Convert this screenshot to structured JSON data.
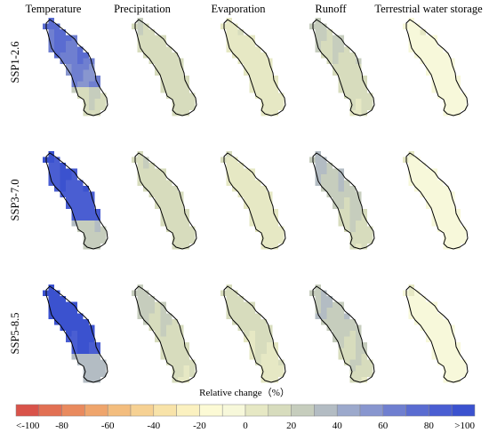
{
  "chart_data": {
    "type": "heatmap",
    "columns": [
      "Temperature",
      "Precipitation",
      "Evaporation",
      "Runoff",
      "Terrestrial water storage"
    ],
    "rows": [
      "SSP1-2.6",
      "SSP3-7.0",
      "SSP5-8.5"
    ],
    "colorbar": {
      "title": "Relative change（%）",
      "min": -100,
      "max": 100,
      "step": 10,
      "tick_labels": [
        "<-100",
        "-80",
        "-60",
        "-40",
        "-20",
        "0",
        "20",
        "40",
        "60",
        "80",
        ">100"
      ],
      "colors": [
        "#d9534a",
        "#e27053",
        "#e98a5e",
        "#efa56c",
        "#f3bd7e",
        "#f6d193",
        "#f8e3a9",
        "#fbf1c0",
        "#fcfad5",
        "#f7f8da",
        "#e6e8c4",
        "#d7dcbd",
        "#c6cdbd",
        "#b3bcc3",
        "#9ca9cc",
        "#8896cf",
        "#6f7fd0",
        "#5a6cd1",
        "#4a5ed2",
        "#3b52cf"
      ]
    },
    "panels": [
      {
        "row": "SSP1-2.6",
        "column": "Temperature",
        "typical_change": 60,
        "max_change": 100
      },
      {
        "row": "SSP1-2.6",
        "column": "Precipitation",
        "typical_change": 15,
        "max_change": 25
      },
      {
        "row": "SSP1-2.6",
        "column": "Evaporation",
        "typical_change": 5,
        "max_change": 15
      },
      {
        "row": "SSP1-2.6",
        "column": "Runoff",
        "typical_change": 15,
        "max_change": 35
      },
      {
        "row": "SSP1-2.6",
        "column": "Terrestrial water storage",
        "typical_change": -5,
        "max_change": 5
      },
      {
        "row": "SSP3-7.0",
        "column": "Temperature",
        "typical_change": 85,
        "max_change": 100
      },
      {
        "row": "SSP3-7.0",
        "column": "Precipitation",
        "typical_change": 15,
        "max_change": 25
      },
      {
        "row": "SSP3-7.0",
        "column": "Evaporation",
        "typical_change": 5,
        "max_change": 15
      },
      {
        "row": "SSP3-7.0",
        "column": "Runoff",
        "typical_change": 20,
        "max_change": 50
      },
      {
        "row": "SSP3-7.0",
        "column": "Terrestrial water storage",
        "typical_change": -5,
        "max_change": 5
      },
      {
        "row": "SSP5-8.5",
        "column": "Temperature",
        "typical_change": 90,
        "max_change": 100
      },
      {
        "row": "SSP5-8.5",
        "column": "Precipitation",
        "typical_change": 15,
        "max_change": 35
      },
      {
        "row": "SSP5-8.5",
        "column": "Evaporation",
        "typical_change": 10,
        "max_change": 25
      },
      {
        "row": "SSP5-8.5",
        "column": "Runoff",
        "typical_change": 20,
        "max_change": 50
      },
      {
        "row": "SSP5-8.5",
        "column": "Terrestrial water storage",
        "typical_change": -5,
        "max_change": 5
      }
    ]
  }
}
